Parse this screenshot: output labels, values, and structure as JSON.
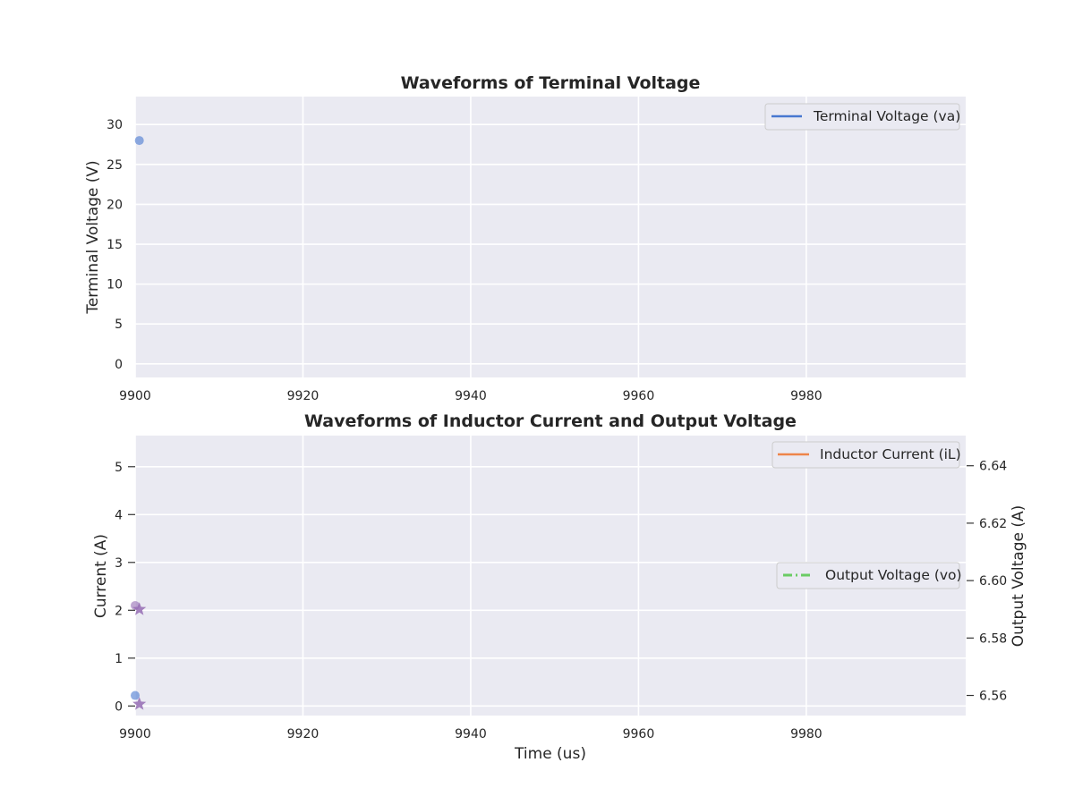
{
  "colors": {
    "plot_bg": "#eaeaf2",
    "grid": "#ffffff",
    "va": "#4878d0",
    "il": "#ee854a",
    "vo": "#6acc64",
    "marker_star": "#956cb4"
  },
  "chart_data": [
    {
      "type": "line",
      "title": "Waveforms of Terminal Voltage",
      "xlabel": "",
      "ylabel": "Terminal Voltage (V)",
      "xlim": [
        9900,
        9999
      ],
      "ylim": [
        -1.7,
        33.5
      ],
      "xticks": [
        "9900",
        "9920",
        "9940",
        "9960",
        "9980"
      ],
      "yticks": [
        "0",
        "5",
        "10",
        "15",
        "20",
        "25",
        "30"
      ],
      "grid": true,
      "legend_position": "top-right",
      "series": [
        {
          "name": "Terminal Voltage (va)",
          "style": "solid",
          "color": "#4878d0",
          "x": [
            9900.5
          ],
          "y": [
            28
          ],
          "marker": "circle"
        }
      ]
    },
    {
      "type": "line",
      "title": "Waveforms of Inductor Current and Output Voltage",
      "xlabel": "Time (us)",
      "ylabel": "Current (A)",
      "ylabel_right": "Output Voltage (A)",
      "xlim": [
        9900,
        9999
      ],
      "ylim": [
        -0.2,
        5.65
      ],
      "ylim_right": [
        6.553,
        6.6505
      ],
      "xticks": [
        "9900",
        "9920",
        "9940",
        "9960",
        "9980"
      ],
      "yticks": [
        "0",
        "1",
        "2",
        "3",
        "4",
        "5"
      ],
      "yticks_right": [
        "6.56",
        "6.58",
        "6.60",
        "6.62",
        "6.64"
      ],
      "grid": true,
      "series": [
        {
          "name": "Inductor Current (iL)",
          "axis": "left",
          "style": "solid",
          "color": "#ee854a",
          "legend_position": "top-right",
          "points": [
            {
              "x": 9900,
              "y": 2.1,
              "marker": "circle",
              "color": "#956cb4"
            },
            {
              "x": 9900,
              "y": 0.22,
              "marker": "circle",
              "color": "#4878d0"
            }
          ]
        },
        {
          "name": "Output Voltage (vo)",
          "axis": "right",
          "style": "dashdot",
          "color": "#6acc64",
          "legend_position": "center-right",
          "points": [
            {
              "x": 9900.5,
              "y": 6.59,
              "marker": "star",
              "color": "#956cb4"
            },
            {
              "x": 9900.5,
              "y": 6.557,
              "marker": "star",
              "color": "#956cb4"
            }
          ]
        }
      ]
    }
  ]
}
